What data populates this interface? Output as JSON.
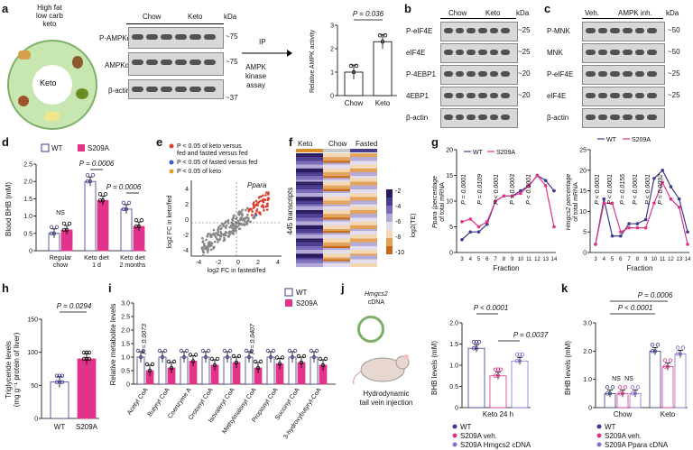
{
  "panels": {
    "a": {
      "label": "a",
      "diet_text": [
        "High fat",
        "low carb",
        "keto"
      ],
      "diet_center": "Keto",
      "blot_groups": [
        "Chow",
        "Keto"
      ],
      "blot_rows": [
        "P-AMPKα",
        "AMPKα",
        "β-actin"
      ],
      "kda_label": "kDa",
      "kda": [
        "~75",
        "~75",
        "~37"
      ],
      "ip_label": "IP",
      "assay_label": [
        "AMPK",
        "kinase",
        "assay"
      ],
      "pvalue": "P = 0.036",
      "ylabel": "Relative AMPK activity"
    },
    "b": {
      "label": "b",
      "groups": [
        "Chow",
        "Keto"
      ],
      "rows": [
        "P-eIF4E",
        "eIF4E",
        "P-4EBP1",
        "4EBP1",
        "β-actin"
      ],
      "kda_label": "kDa",
      "kda": [
        "~25",
        "~25",
        "~20",
        "~20"
      ]
    },
    "c": {
      "label": "c",
      "groups": [
        "Veh.",
        "AMPK inh."
      ],
      "rows": [
        "P-MNK",
        "MNK",
        "P-eIF4E",
        "eIF4E",
        "β-actin"
      ],
      "kda_label": "kDa",
      "kda": [
        "~50",
        "~50",
        "~25",
        "~25"
      ]
    },
    "d": {
      "label": "d",
      "legend": [
        "WT",
        "S209A"
      ],
      "ylabel": "Blood BHB (mM)",
      "ns": "NS",
      "p1": "P = 0.0006",
      "p2": "P = 0.0006",
      "xcats": [
        [
          "Regular",
          "chow"
        ],
        [
          "Keto diet",
          "1 d"
        ],
        [
          "Keto diet",
          "2 months"
        ]
      ]
    },
    "e": {
      "label": "e",
      "legend": [
        "P < 0.05 of keto versus fed and fasted versus fed",
        "P < 0.05 of fasted versus fed",
        "P < 0.05 of keto"
      ],
      "gene": "Ppara",
      "ylabel": "log2 FC in keto/fed",
      "xlabel": "log2 FC in fasted/fed"
    },
    "f": {
      "label": "f",
      "groups": [
        "Keto",
        "Chow",
        "Fasted"
      ],
      "ylabel": "445 transcripts",
      "cbar_label": "log2(TE)",
      "cbar_ticks": [
        "-2",
        "-4",
        "-6",
        "-8",
        "-10"
      ]
    },
    "g": {
      "label": "g",
      "legend": [
        "WT",
        "S209A"
      ],
      "left_ylabel": [
        "Ppara (percentage",
        "of total mRNA"
      ],
      "right_ylabel": [
        "Hmgcs2 percentage",
        "of total mRNA"
      ],
      "xlabel": "Fraction",
      "left_pvals": [
        "P = 0.0001",
        "P = 0.0109",
        "P < 0.0001",
        "P = 0.0003",
        "P < 0.0001"
      ],
      "right_pvals": [
        "P < 0.0001",
        "P < 0.0001",
        "P = 0.0155",
        "P < 0.0001",
        "P < 0.0001",
        "P = 0.0092"
      ]
    },
    "h": {
      "label": "h",
      "pvalue": "P = 0.0294",
      "ylabel": [
        "Triglyceride levels",
        "(mg g⁻¹ protein of liver)"
      ],
      "xcats": [
        "WT",
        "S209A"
      ]
    },
    "i": {
      "label": "i",
      "legend": [
        "WT",
        "S209A"
      ],
      "ylabel": "Relative metabolite levels",
      "p1": "P = 0.0073",
      "p2": "P = 0.0407",
      "xcats": [
        "Acetyl CoA",
        "Butyryl CoA",
        "Coenzyme A",
        "Crotonyl CoA",
        "Isovaleryl CoA",
        "Methylmalonyl CoA",
        "Propionyl CoA",
        "Succinyl CoA",
        "3-hydroxybutyryl-CoA"
      ]
    },
    "j": {
      "label": "j",
      "plasmid": [
        "Hmgcs2",
        "cDNA"
      ],
      "injection": [
        "Hydrodynamic",
        "tail vein injection"
      ],
      "ylabel": "BHB levels (mM)",
      "p1": "P < 0.0001",
      "p2": "P = 0.0037",
      "xlabel": "Keto 24 h",
      "legend": [
        "WT",
        "S209A veh.",
        "S209A Hmgcs2 cDNA"
      ]
    },
    "k": {
      "label": "k",
      "ylabel": "BHB levels (mM)",
      "p1": "P = 0.0006",
      "p2": "P < 0.0001",
      "ns1": "NS",
      "ns2": "NS",
      "xcats": [
        "Chow",
        "Keto"
      ],
      "legend": [
        "WT",
        "S209A veh.",
        "S209A Ppara cDNA"
      ]
    }
  },
  "colors": {
    "wt": "#3b3b8f",
    "s209a": "#e0338a",
    "third": "#8a6fd1",
    "dark": "#222222"
  },
  "chart_data": [
    {
      "type": "bar",
      "id": "a",
      "categories": [
        "Chow",
        "Keto"
      ],
      "values": [
        1.0,
        2.3
      ],
      "ylim": [
        0,
        3
      ],
      "yticks": [
        "0",
        "1",
        "2",
        "3"
      ],
      "ylabel": "Relative AMPK activity"
    },
    {
      "type": "bar",
      "id": "d",
      "categories": [
        "Regular chow",
        "Keto diet 1 d",
        "Keto diet 2 months"
      ],
      "series": [
        {
          "name": "WT",
          "values": [
            0.5,
            2.0,
            1.2
          ]
        },
        {
          "name": "S209A",
          "values": [
            0.6,
            1.45,
            0.7
          ]
        }
      ],
      "ylim": [
        0,
        2.5
      ],
      "yticks": [
        "0",
        "0.5",
        "1.0",
        "1.5",
        "2.0",
        "2.5"
      ]
    },
    {
      "type": "line",
      "id": "g-left",
      "x": [
        3,
        4,
        5,
        6,
        7,
        8,
        9,
        10,
        11,
        12,
        13,
        14
      ],
      "series": [
        {
          "name": "WT",
          "values": [
            2.5,
            4,
            4,
            5.5,
            10,
            11,
            11,
            12,
            13,
            15,
            14,
            12
          ]
        },
        {
          "name": "S209A",
          "values": [
            6,
            6.5,
            5,
            6,
            10,
            11,
            11,
            11.5,
            13,
            15,
            13,
            5
          ]
        }
      ],
      "ylim": [
        0,
        20
      ],
      "yticks": [
        "0",
        "5",
        "10",
        "15",
        "20"
      ]
    },
    {
      "type": "line",
      "id": "g-right",
      "x": [
        3,
        4,
        5,
        6,
        7,
        8,
        9,
        10,
        11,
        12,
        13,
        14
      ],
      "series": [
        {
          "name": "WT",
          "values": [
            2,
            13,
            4,
            4,
            7,
            7,
            8,
            18,
            20,
            16,
            13,
            5
          ]
        },
        {
          "name": "S209A",
          "values": [
            2,
            12,
            12,
            5,
            6,
            6,
            6,
            12,
            17,
            13,
            11,
            2
          ]
        }
      ],
      "ylim": [
        0,
        25
      ],
      "yticks": [
        "0",
        "5",
        "10",
        "15",
        "20",
        "25"
      ]
    },
    {
      "type": "bar",
      "id": "h",
      "categories": [
        "WT",
        "S209A"
      ],
      "values": [
        55,
        90
      ],
      "ylim": [
        0,
        150
      ],
      "yticks": [
        "0",
        "50",
        "100",
        "150"
      ]
    },
    {
      "type": "bar",
      "id": "i",
      "categories": [
        "Acetyl CoA",
        "Butyryl CoA",
        "Coenzyme A",
        "Crotonyl CoA",
        "Isovaleryl CoA",
        "Methylmalonyl CoA",
        "Propionyl CoA",
        "Succinyl CoA",
        "3-hydroxybutyryl-CoA"
      ],
      "series": [
        {
          "name": "WT",
          "values": [
            1.0,
            1.0,
            1.0,
            1.0,
            1.0,
            1.0,
            1.0,
            1.0,
            1.0
          ]
        },
        {
          "name": "S209A",
          "values": [
            0.5,
            0.6,
            0.85,
            0.7,
            0.8,
            0.6,
            0.75,
            0.8,
            0.7
          ]
        }
      ],
      "ylim": [
        0,
        3.0
      ],
      "yticks": [
        "0",
        "0.5",
        "1.0",
        "1.5",
        "2.0",
        "2.5",
        "3.0"
      ]
    },
    {
      "type": "bar",
      "id": "j",
      "categories": [
        "Keto 24 h"
      ],
      "series": [
        {
          "name": "WT",
          "values": [
            1.4
          ]
        },
        {
          "name": "S209A veh.",
          "values": [
            0.75
          ]
        },
        {
          "name": "S209A Hmgcs2 cDNA",
          "values": [
            1.1
          ]
        }
      ],
      "ylim": [
        0,
        2.0
      ],
      "yticks": [
        "0",
        "0.5",
        "1.0",
        "1.5",
        "2.0"
      ]
    },
    {
      "type": "bar",
      "id": "k",
      "categories": [
        "Chow",
        "Keto"
      ],
      "series": [
        {
          "name": "WT",
          "values": [
            0.5,
            2.0
          ]
        },
        {
          "name": "S209A veh.",
          "values": [
            0.5,
            1.45
          ]
        },
        {
          "name": "S209A Ppara cDNA",
          "values": [
            0.5,
            1.9
          ]
        }
      ],
      "ylim": [
        0,
        3.0
      ],
      "yticks": [
        "0",
        "1.0",
        "2.0",
        "3.0"
      ]
    }
  ]
}
